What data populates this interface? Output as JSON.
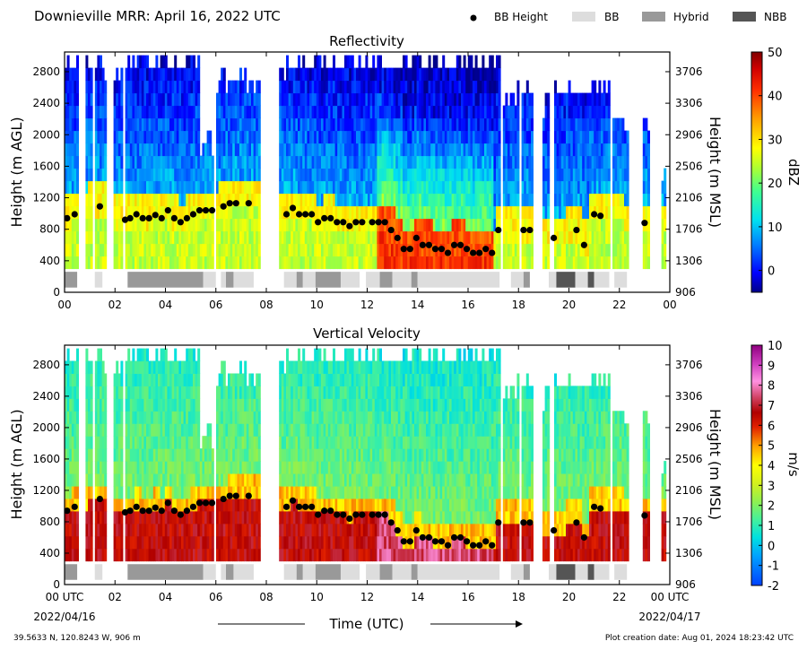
{
  "header": {
    "title": "Downieville MRR:  April 16, 2022 UTC",
    "legend": [
      {
        "label": "BB Height",
        "kind": "dot",
        "color": "#000000"
      },
      {
        "label": "BB",
        "kind": "box",
        "color": "#dddddd"
      },
      {
        "label": "Hybrid",
        "kind": "box",
        "color": "#999999"
      },
      {
        "label": "NBB",
        "kind": "box",
        "color": "#555555"
      }
    ]
  },
  "footer": {
    "location": "39.5633 N, 120.8243 W, 906 m",
    "creation": "Plot creation date: Aug 01, 2024 18:23:42 UTC",
    "xlabel": "Time (UTC)",
    "start_date": "2022/04/16",
    "end_date": "2022/04/17"
  },
  "chart_data": [
    {
      "type": "heatmap",
      "title": "Reflectivity",
      "ylabel": "Height (m AGL)",
      "ylabel_right": "Height (m MSL)",
      "xlim": [
        0,
        24
      ],
      "ylim": [
        0,
        3050
      ],
      "x_ticks": [
        "00",
        "02",
        "04",
        "06",
        "08",
        "10",
        "12",
        "14",
        "16",
        "18",
        "20",
        "22",
        "00"
      ],
      "y_ticks": [
        0,
        400,
        800,
        1200,
        1600,
        2000,
        2400,
        2800
      ],
      "y_ticks_right": [
        "906",
        "1306",
        "1706",
        "2106",
        "2506",
        "2906",
        "3306",
        "3706"
      ],
      "colorbar": {
        "label": "dBZ",
        "min": -5,
        "max": 50,
        "ticks": [
          0,
          10,
          20,
          30,
          40,
          50
        ]
      }
    },
    {
      "type": "heatmap",
      "title": "Vertical Velocity",
      "ylabel": "Height (m AGL)",
      "ylabel_right": "Height (m MSL)",
      "xlim": [
        0,
        24
      ],
      "ylim": [
        0,
        3050
      ],
      "x_ticks": [
        "00 UTC",
        "02",
        "04",
        "06",
        "08",
        "10",
        "12",
        "14",
        "16",
        "18",
        "20",
        "22",
        "00 UTC"
      ],
      "y_ticks": [
        0,
        400,
        800,
        1200,
        1600,
        2000,
        2400,
        2800
      ],
      "y_ticks_right": [
        "906",
        "1306",
        "1706",
        "2106",
        "2506",
        "2906",
        "3306",
        "3706"
      ],
      "colorbar": {
        "label": "m/s",
        "min": -2,
        "max": 10,
        "ticks": [
          -2,
          -1,
          0,
          1,
          2,
          3,
          4,
          5,
          6,
          7,
          8,
          9,
          10
        ]
      }
    }
  ],
  "bb_height": [
    [
      0.1,
      940
    ],
    [
      0.4,
      990
    ],
    [
      1.4,
      1090
    ],
    [
      2.4,
      920
    ],
    [
      2.6,
      940
    ],
    [
      2.85,
      990
    ],
    [
      3.1,
      940
    ],
    [
      3.35,
      940
    ],
    [
      3.6,
      980
    ],
    [
      3.85,
      940
    ],
    [
      4.1,
      1040
    ],
    [
      4.35,
      940
    ],
    [
      4.6,
      890
    ],
    [
      4.85,
      940
    ],
    [
      5.1,
      990
    ],
    [
      5.35,
      1040
    ],
    [
      5.6,
      1040
    ],
    [
      5.85,
      1040
    ],
    [
      6.3,
      1090
    ],
    [
      6.55,
      1130
    ],
    [
      6.8,
      1130
    ],
    [
      7.3,
      1130
    ],
    [
      8.8,
      990
    ],
    [
      9.05,
      1070
    ],
    [
      9.3,
      990
    ],
    [
      9.55,
      990
    ],
    [
      9.8,
      990
    ],
    [
      10.05,
      890
    ],
    [
      10.3,
      940
    ],
    [
      10.55,
      940
    ],
    [
      10.8,
      890
    ],
    [
      11.05,
      890
    ],
    [
      11.3,
      840
    ],
    [
      11.55,
      890
    ],
    [
      11.8,
      890
    ],
    [
      12.2,
      890
    ],
    [
      12.45,
      890
    ],
    [
      12.7,
      890
    ],
    [
      12.95,
      790
    ],
    [
      13.2,
      690
    ],
    [
      13.45,
      550
    ],
    [
      13.7,
      550
    ],
    [
      13.95,
      690
    ],
    [
      14.2,
      600
    ],
    [
      14.45,
      600
    ],
    [
      14.7,
      550
    ],
    [
      14.95,
      550
    ],
    [
      15.2,
      500
    ],
    [
      15.45,
      600
    ],
    [
      15.7,
      600
    ],
    [
      15.95,
      550
    ],
    [
      16.2,
      500
    ],
    [
      16.45,
      500
    ],
    [
      16.7,
      550
    ],
    [
      16.95,
      500
    ],
    [
      17.2,
      790
    ],
    [
      18.2,
      790
    ],
    [
      18.45,
      790
    ],
    [
      19.4,
      690
    ],
    [
      20.3,
      790
    ],
    [
      20.6,
      600
    ],
    [
      21.0,
      990
    ],
    [
      21.25,
      970
    ],
    [
      23.0,
      880
    ]
  ],
  "bb_types": [
    {
      "type": "Hybrid",
      "start": 0.0,
      "end": 0.5
    },
    {
      "type": "BB",
      "start": 1.2,
      "end": 1.5
    },
    {
      "type": "Hybrid",
      "start": 2.5,
      "end": 5.5
    },
    {
      "type": "BB",
      "start": 5.5,
      "end": 6.0
    },
    {
      "type": "BB",
      "start": 6.2,
      "end": 6.4
    },
    {
      "type": "Hybrid",
      "start": 6.4,
      "end": 6.7
    },
    {
      "type": "BB",
      "start": 6.7,
      "end": 7.5
    },
    {
      "type": "BB",
      "start": 8.7,
      "end": 9.2
    },
    {
      "type": "Hybrid",
      "start": 9.2,
      "end": 9.45
    },
    {
      "type": "BB",
      "start": 9.45,
      "end": 9.95
    },
    {
      "type": "Hybrid",
      "start": 9.95,
      "end": 10.95
    },
    {
      "type": "BB",
      "start": 10.95,
      "end": 11.7
    },
    {
      "type": "BB",
      "start": 11.95,
      "end": 12.5
    },
    {
      "type": "Hybrid",
      "start": 12.5,
      "end": 13.0
    },
    {
      "type": "BB",
      "start": 13.0,
      "end": 13.75
    },
    {
      "type": "Hybrid",
      "start": 13.75,
      "end": 14.0
    },
    {
      "type": "BB",
      "start": 14.0,
      "end": 17.25
    },
    {
      "type": "BB",
      "start": 17.7,
      "end": 18.2
    },
    {
      "type": "Hybrid",
      "start": 18.2,
      "end": 18.45
    },
    {
      "type": "BB",
      "start": 19.2,
      "end": 19.5
    },
    {
      "type": "NBB",
      "start": 19.5,
      "end": 20.25
    },
    {
      "type": "BB",
      "start": 20.25,
      "end": 20.75
    },
    {
      "type": "NBB",
      "start": 20.75,
      "end": 21.0
    },
    {
      "type": "BB",
      "start": 21.0,
      "end": 21.6
    },
    {
      "type": "BB",
      "start": 21.8,
      "end": 22.3
    }
  ]
}
